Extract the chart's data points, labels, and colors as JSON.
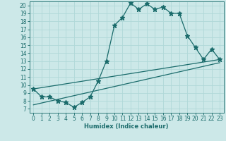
{
  "title": "",
  "xlabel": "Humidex (Indice chaleur)",
  "bg_color": "#cce8e8",
  "line_color": "#1a6b6b",
  "grid_color": "#b0d8d8",
  "xlim": [
    -0.5,
    23.5
  ],
  "ylim": [
    6.5,
    20.5
  ],
  "xticks": [
    0,
    1,
    2,
    3,
    4,
    5,
    6,
    7,
    8,
    9,
    10,
    11,
    12,
    13,
    14,
    15,
    16,
    17,
    18,
    19,
    20,
    21,
    22,
    23
  ],
  "yticks": [
    7,
    8,
    9,
    10,
    11,
    12,
    13,
    14,
    15,
    16,
    17,
    18,
    19,
    20
  ],
  "series1_x": [
    0,
    1,
    2,
    3,
    4,
    5,
    6,
    7,
    8,
    9,
    10,
    11,
    12,
    13,
    14,
    15,
    16,
    17,
    18,
    19,
    20,
    21,
    22,
    23
  ],
  "series1_y": [
    9.5,
    8.5,
    8.5,
    8.0,
    7.8,
    7.2,
    7.8,
    8.5,
    10.5,
    13.0,
    17.5,
    18.5,
    20.3,
    19.5,
    20.2,
    19.5,
    19.8,
    19.0,
    19.0,
    16.2,
    14.7,
    13.2,
    14.5,
    13.2
  ],
  "series2_x": [
    0,
    23
  ],
  "series2_y": [
    9.5,
    13.2
  ],
  "series3_x": [
    0,
    23
  ],
  "series3_y": [
    7.5,
    12.8
  ],
  "markersize": 2.5,
  "linewidth": 0.9,
  "tick_fontsize": 5.5,
  "xlabel_fontsize": 6.0
}
